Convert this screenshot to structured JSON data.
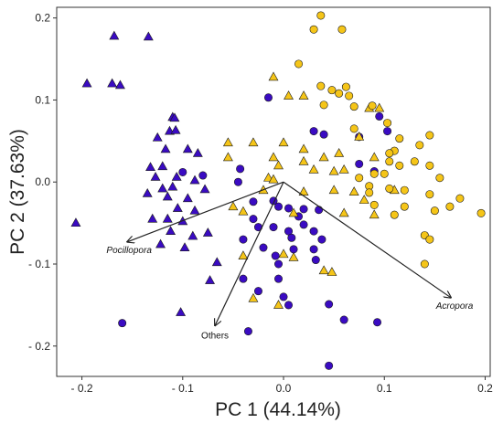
{
  "colors": {
    "group_a": "#3a0bc2",
    "group_b": "#f5c518",
    "stroke": "#1a1a1a",
    "arrow": "#222222"
  },
  "chart_data": {
    "type": "scatter",
    "xlabel": "PC 1 (44.14%)",
    "ylabel": "PC 2 (37.63%)",
    "xlim": [
      -0.225,
      0.205
    ],
    "ylim": [
      -0.237,
      0.213
    ],
    "x_ticks": [
      -0.2,
      -0.1,
      0.0,
      0.1,
      0.2
    ],
    "x_tick_labels": [
      "- 0.2",
      "- 0.1",
      "0.0",
      "0.1",
      "0.2"
    ],
    "y_ticks": [
      -0.2,
      -0.1,
      0.0,
      0.1,
      0.2
    ],
    "y_tick_labels": [
      "- 0.2",
      "- 0.1",
      "0.0",
      "0.1",
      "0.2"
    ],
    "grid": false,
    "legend": "none",
    "vectors": [
      {
        "label": "Pocillopora",
        "italic": true,
        "x": -0.155,
        "y": -0.073
      },
      {
        "label": "Others",
        "italic": false,
        "x": -0.068,
        "y": -0.175
      },
      {
        "label": "Acropora",
        "italic": true,
        "x": 0.166,
        "y": -0.141
      }
    ],
    "series": [
      {
        "color": "group_a",
        "shape": "triangle",
        "points": [
          [
            -0.168,
            0.178
          ],
          [
            -0.134,
            0.177
          ],
          [
            -0.195,
            0.12
          ],
          [
            -0.17,
            0.12
          ],
          [
            -0.162,
            0.118
          ],
          [
            -0.206,
            -0.05
          ],
          [
            -0.11,
            0.079
          ],
          [
            -0.108,
            0.078
          ],
          [
            -0.113,
            0.062
          ],
          [
            -0.107,
            0.063
          ],
          [
            -0.125,
            0.054
          ],
          [
            -0.117,
            0.04
          ],
          [
            -0.095,
            0.04
          ],
          [
            -0.085,
            0.035
          ],
          [
            -0.132,
            0.018
          ],
          [
            -0.12,
            0.019
          ],
          [
            -0.127,
            0.006
          ],
          [
            -0.106,
            0.006
          ],
          [
            -0.088,
            0.002
          ],
          [
            -0.12,
            -0.008
          ],
          [
            -0.11,
            -0.006
          ],
          [
            -0.135,
            -0.014
          ],
          [
            -0.115,
            -0.018
          ],
          [
            -0.095,
            -0.02
          ],
          [
            -0.078,
            -0.009
          ],
          [
            -0.105,
            -0.032
          ],
          [
            -0.088,
            -0.035
          ],
          [
            -0.13,
            -0.045
          ],
          [
            -0.115,
            -0.045
          ],
          [
            -0.1,
            -0.048
          ],
          [
            -0.112,
            -0.06
          ],
          [
            -0.09,
            -0.066
          ],
          [
            -0.075,
            -0.062
          ],
          [
            -0.098,
            -0.08
          ],
          [
            -0.122,
            -0.076
          ],
          [
            -0.066,
            -0.098
          ],
          [
            -0.073,
            -0.12
          ],
          [
            -0.102,
            -0.159
          ]
        ]
      },
      {
        "color": "group_a",
        "shape": "circle",
        "points": [
          [
            -0.16,
            -0.172
          ],
          [
            -0.1,
            0.012
          ],
          [
            -0.08,
            0.008
          ],
          [
            -0.045,
            0.0
          ],
          [
            -0.015,
            0.103
          ],
          [
            0.03,
            0.062
          ],
          [
            0.04,
            0.058
          ],
          [
            0.075,
            0.055
          ],
          [
            0.095,
            0.08
          ],
          [
            0.103,
            0.062
          ],
          [
            0.075,
            0.022
          ],
          [
            0.09,
            0.013
          ],
          [
            -0.03,
            -0.024
          ],
          [
            -0.01,
            -0.023
          ],
          [
            -0.005,
            -0.03
          ],
          [
            0.005,
            -0.032
          ],
          [
            0.015,
            -0.042
          ],
          [
            0.02,
            -0.033
          ],
          [
            0.035,
            -0.034
          ],
          [
            -0.03,
            -0.045
          ],
          [
            -0.025,
            -0.055
          ],
          [
            -0.01,
            -0.055
          ],
          [
            0.005,
            -0.06
          ],
          [
            0.02,
            -0.052
          ],
          [
            0.03,
            -0.06
          ],
          [
            0.038,
            -0.07
          ],
          [
            -0.04,
            -0.07
          ],
          [
            -0.02,
            -0.08
          ],
          [
            -0.008,
            -0.09
          ],
          [
            -0.005,
            -0.1
          ],
          [
            0.008,
            -0.068
          ],
          [
            0.01,
            -0.082
          ],
          [
            0.03,
            -0.082
          ],
          [
            0.032,
            -0.095
          ],
          [
            -0.04,
            -0.118
          ],
          [
            -0.025,
            -0.133
          ],
          [
            -0.005,
            -0.118
          ],
          [
            0.0,
            -0.14
          ],
          [
            0.005,
            -0.15
          ],
          [
            0.045,
            -0.149
          ],
          [
            0.06,
            -0.168
          ],
          [
            0.093,
            -0.171
          ],
          [
            -0.035,
            -0.182
          ],
          [
            0.045,
            -0.224
          ],
          [
            -0.043,
            0.016
          ]
        ]
      },
      {
        "color": "group_b",
        "shape": "triangle",
        "points": [
          [
            -0.01,
            0.128
          ],
          [
            0.005,
            0.105
          ],
          [
            0.02,
            0.105
          ],
          [
            0.085,
            0.09
          ],
          [
            0.095,
            0.09
          ],
          [
            -0.055,
            0.048
          ],
          [
            -0.03,
            0.048
          ],
          [
            0.0,
            0.048
          ],
          [
            0.02,
            0.04
          ],
          [
            -0.055,
            0.03
          ],
          [
            -0.01,
            0.03
          ],
          [
            0.02,
            0.025
          ],
          [
            0.04,
            0.03
          ],
          [
            0.055,
            0.035
          ],
          [
            0.075,
            0.055
          ],
          [
            -0.005,
            0.02
          ],
          [
            0.03,
            0.015
          ],
          [
            0.05,
            0.013
          ],
          [
            0.06,
            0.015
          ],
          [
            0.09,
            0.03
          ],
          [
            -0.015,
            0.005
          ],
          [
            -0.01,
            0.003
          ],
          [
            -0.02,
            -0.01
          ],
          [
            0.02,
            -0.012
          ],
          [
            0.05,
            -0.01
          ],
          [
            0.07,
            -0.012
          ],
          [
            -0.05,
            -0.03
          ],
          [
            -0.04,
            -0.036
          ],
          [
            0.01,
            -0.038
          ],
          [
            0.06,
            -0.038
          ],
          [
            0.08,
            -0.022
          ],
          [
            0.09,
            -0.04
          ],
          [
            0.11,
            -0.01
          ],
          [
            -0.04,
            -0.09
          ],
          [
            0.0,
            -0.088
          ],
          [
            0.01,
            -0.092
          ],
          [
            0.04,
            -0.108
          ],
          [
            -0.005,
            -0.15
          ],
          [
            -0.03,
            -0.142
          ],
          [
            0.048,
            -0.11
          ]
        ]
      },
      {
        "color": "group_b",
        "shape": "circle",
        "points": [
          [
            0.037,
            0.203
          ],
          [
            0.03,
            0.186
          ],
          [
            0.058,
            0.186
          ],
          [
            0.015,
            0.144
          ],
          [
            0.037,
            0.117
          ],
          [
            0.048,
            0.112
          ],
          [
            0.055,
            0.108
          ],
          [
            0.062,
            0.116
          ],
          [
            0.065,
            0.105
          ],
          [
            0.04,
            0.094
          ],
          [
            0.07,
            0.092
          ],
          [
            0.088,
            0.093
          ],
          [
            0.07,
            0.065
          ],
          [
            0.103,
            0.072
          ],
          [
            0.115,
            0.053
          ],
          [
            0.145,
            0.057
          ],
          [
            0.11,
            0.038
          ],
          [
            0.105,
            0.035
          ],
          [
            0.135,
            0.045
          ],
          [
            0.105,
            0.025
          ],
          [
            0.115,
            0.02
          ],
          [
            0.145,
            0.02
          ],
          [
            0.13,
            0.025
          ],
          [
            0.09,
            0.01
          ],
          [
            0.1,
            0.01
          ],
          [
            0.075,
            0.005
          ],
          [
            0.085,
            -0.005
          ],
          [
            0.105,
            -0.008
          ],
          [
            0.12,
            -0.01
          ],
          [
            0.145,
            -0.015
          ],
          [
            0.155,
            0.005
          ],
          [
            0.175,
            -0.02
          ],
          [
            0.12,
            -0.03
          ],
          [
            0.09,
            -0.028
          ],
          [
            0.11,
            -0.04
          ],
          [
            0.15,
            -0.035
          ],
          [
            0.165,
            -0.03
          ],
          [
            0.196,
            -0.038
          ],
          [
            0.14,
            -0.065
          ],
          [
            0.145,
            -0.07
          ],
          [
            0.14,
            -0.1
          ],
          [
            0.085,
            -0.013
          ]
        ]
      }
    ]
  }
}
